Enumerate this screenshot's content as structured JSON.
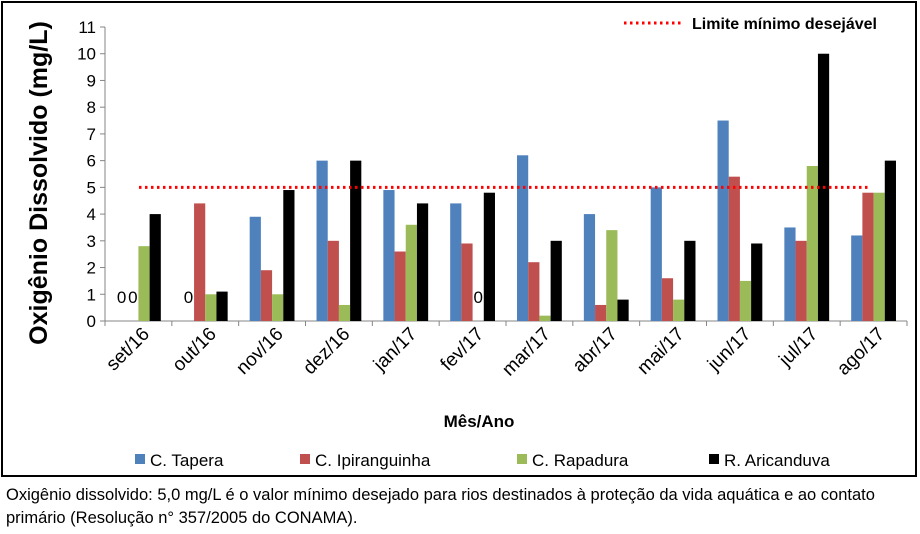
{
  "chart_data": {
    "type": "bar",
    "title": "",
    "xlabel": "Mês/Ano",
    "ylabel": "Oxigênio Dissolvido (mg/L)",
    "ylim": [
      0,
      11
    ],
    "yticks": [
      "0",
      "1",
      "2",
      "3",
      "4",
      "5",
      "6",
      "7",
      "8",
      "9",
      "10",
      "11"
    ],
    "grid": false,
    "legend_position": "bottom",
    "categories": [
      "set/16",
      "out/16",
      "nov/16",
      "dez/16",
      "jan/17",
      "fev/17",
      "mar/17",
      "abr/17",
      "mai/17",
      "jun/17",
      "jul/17",
      "ago/17"
    ],
    "series": [
      {
        "name": "C. Tapera",
        "color": "#4f81bd",
        "values": [
          0,
          0,
          3.9,
          6.0,
          4.9,
          4.4,
          6.2,
          4.0,
          5.0,
          7.5,
          3.5,
          3.2
        ]
      },
      {
        "name": "C. Ipiranguinha",
        "color": "#c0504d",
        "values": [
          0,
          4.4,
          1.9,
          3.0,
          2.6,
          2.9,
          2.2,
          0.6,
          1.6,
          5.4,
          3.0,
          4.8
        ]
      },
      {
        "name": "C. Rapadura",
        "color": "#9bbb59",
        "values": [
          2.8,
          1.0,
          1.0,
          0.6,
          3.6,
          0,
          0.2,
          3.4,
          0.8,
          1.5,
          5.8,
          4.8
        ]
      },
      {
        "name": "R. Aricanduva",
        "color": "#000000",
        "values": [
          4.0,
          1.1,
          4.9,
          6.0,
          4.4,
          4.8,
          3.0,
          0.8,
          3.0,
          2.9,
          10.0,
          6.0
        ]
      }
    ],
    "zero_labels": [
      {
        "category": "set/16",
        "series": 0,
        "text": "0"
      },
      {
        "category": "set/16",
        "series": 1,
        "text": "0"
      },
      {
        "category": "out/16",
        "series": 0,
        "text": "0"
      },
      {
        "category": "fev/17",
        "series": 2,
        "text": "0"
      }
    ],
    "reference_line": {
      "name": "Limite mínimo desejável",
      "value": 5,
      "color": "#ff0000"
    }
  },
  "caption": "Oxigênio dissolvido: 5,0 mg/L é o valor mínimo desejado para rios destinados à proteção da vida aquática e ao contato primário (Resolução n° 357/2005 do CONAMA)."
}
